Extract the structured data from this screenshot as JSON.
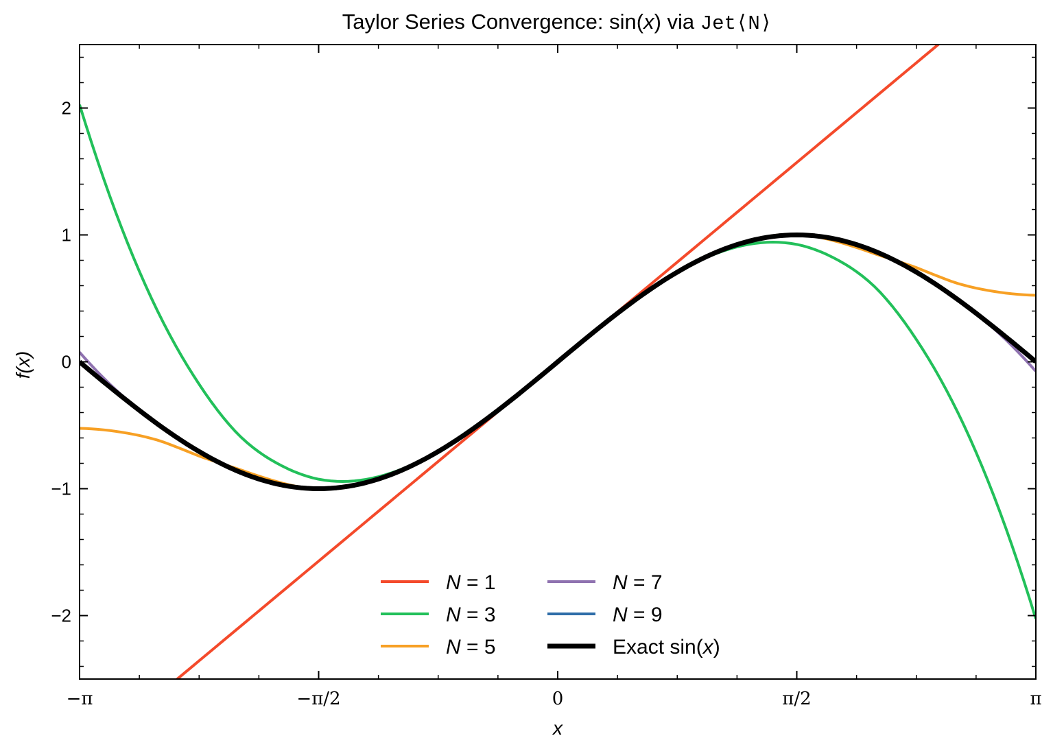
{
  "chart_data": {
    "type": "line",
    "title": {
      "prefix": "Taylor Series Convergence: sin(",
      "var": "x",
      "middle": ") via ",
      "code": "Jet⟨N⟩"
    },
    "xlabel": "x",
    "ylabel": "f(x)",
    "xlim": [
      -3.14159265,
      3.14159265
    ],
    "ylim": [
      -2.5,
      2.5
    ],
    "xticks": [
      {
        "value": -3.14159265,
        "label": "−π"
      },
      {
        "value": -1.57079633,
        "label": "−π/2"
      },
      {
        "value": 0,
        "label": "0"
      },
      {
        "value": 1.57079633,
        "label": "π/2"
      },
      {
        "value": 3.14159265,
        "label": "π"
      }
    ],
    "yticks": [
      {
        "value": 2,
        "label": "2"
      },
      {
        "value": 1,
        "label": "1"
      },
      {
        "value": 0,
        "label": "0"
      },
      {
        "value": -1,
        "label": "−1"
      },
      {
        "value": -2,
        "label": "−2"
      }
    ],
    "grid": false,
    "legend_position": "lower-center",
    "legend_columns": 2,
    "series": [
      {
        "name": "N = 1",
        "color": "#f44a2b",
        "x": [
          -3.14159,
          -2.61799,
          -2.0944,
          -1.5708,
          -1.0472,
          -0.5236,
          0,
          0.5236,
          1.0472,
          1.5708,
          2.0944,
          2.61799,
          3.14159
        ],
        "y": [
          -3.1416,
          -2.618,
          -2.0944,
          -1.5708,
          -1.0472,
          -0.5236,
          0,
          0.5236,
          1.0472,
          1.5708,
          2.0944,
          2.618,
          3.1416
        ]
      },
      {
        "name": "N = 3",
        "color": "#22c05a",
        "x": [
          -3.14159,
          -2.87979,
          -2.61799,
          -2.35619,
          -2.0944,
          -1.8326,
          -1.5708,
          -1.309,
          -1.0472,
          -0.7854,
          -0.5236,
          -0.2618,
          0,
          0.2618,
          0.5236,
          0.7854,
          1.0472,
          1.309,
          1.5708,
          1.8326,
          2.0944,
          2.35619,
          2.61799,
          2.87979,
          3.14159
        ],
        "y": [
          2.0261,
          1.1006,
          0.3727,
          -0.1762,
          -0.5784,
          -0.8067,
          -0.9251,
          -0.9352,
          -0.856,
          -0.7047,
          -0.4997,
          -0.2588,
          0,
          0.2588,
          0.4997,
          0.7047,
          0.856,
          0.9352,
          0.9251,
          0.8067,
          0.5784,
          0.1762,
          -0.3727,
          -1.1006,
          -2.0261
        ]
      },
      {
        "name": "N = 5",
        "color": "#f7a024",
        "x": [
          -3.14159,
          -2.87979,
          -2.61799,
          -2.35619,
          -2.0944,
          -1.8326,
          -1.5708,
          -1.309,
          -1.0472,
          -0.7854,
          -0.5236,
          -0.2618,
          0,
          0.2618,
          0.5236,
          0.7854,
          1.0472,
          1.309,
          1.5708,
          1.8326,
          2.0944,
          2.35619,
          2.61799,
          2.87979,
          3.14159
        ],
        "y": [
          -0.524,
          -0.5523,
          -0.6211,
          -0.7427,
          -0.8469,
          -0.9486,
          -1.0045,
          -0.9719,
          -0.8663,
          -0.7071,
          -0.5,
          -0.2588,
          0,
          0.2588,
          0.5,
          0.7071,
          0.8663,
          0.9719,
          1.0045,
          0.9486,
          0.8469,
          0.7427,
          0.6211,
          0.5523,
          0.524
        ]
      },
      {
        "name": "N = 7",
        "color": "#8f72b0",
        "x": [
          -3.14159,
          -2.87979,
          -2.61799,
          -2.35619,
          -2.0944,
          -1.8326,
          -1.5708,
          -1.309,
          -1.0472,
          -0.7854,
          -0.5236,
          -0.2618,
          0,
          0.2618,
          0.5236,
          0.7854,
          1.0472,
          1.309,
          1.5708,
          1.8326,
          2.0944,
          2.35619,
          2.61799,
          2.87979,
          3.14159
        ],
        "y": [
          0.0752,
          -0.2466,
          -0.4944,
          -0.7041,
          -0.8653,
          -0.9655,
          -0.9998,
          -0.9659,
          -0.866,
          -0.7071,
          -0.5,
          -0.2588,
          0,
          0.2588,
          0.5,
          0.7071,
          0.866,
          0.9659,
          0.9998,
          0.9655,
          0.8653,
          0.7041,
          0.4944,
          0.2466,
          -0.0752
        ]
      },
      {
        "name": "N = 9",
        "color": "#2e6da8",
        "x": [
          -3.14159,
          -2.87979,
          -2.61799,
          -2.35619,
          -2.0944,
          -1.8326,
          -1.5708,
          -1.309,
          -1.0472,
          -0.7854,
          -0.5236,
          -0.2618,
          0,
          0.2618,
          0.5236,
          0.7854,
          1.0472,
          1.309,
          1.5708,
          1.8326,
          2.0944,
          2.35619,
          2.61799,
          2.87979,
          3.14159
        ],
        "y": [
          -0.0069,
          -0.2598,
          -0.5004,
          -0.7072,
          -0.8661,
          -0.9659,
          -1.0,
          -0.9659,
          -0.866,
          -0.7071,
          -0.5,
          -0.2588,
          0,
          0.2588,
          0.5,
          0.7071,
          0.866,
          0.9659,
          1.0,
          0.9659,
          0.8661,
          0.7072,
          0.5004,
          0.2598,
          0.0069
        ]
      },
      {
        "name": "Exact sin(x)",
        "color": "#000000",
        "emphasis": true,
        "x": [
          -3.14159,
          -2.87979,
          -2.61799,
          -2.35619,
          -2.0944,
          -1.8326,
          -1.5708,
          -1.309,
          -1.0472,
          -0.7854,
          -0.5236,
          -0.2618,
          0,
          0.2618,
          0.5236,
          0.7854,
          1.0472,
          1.309,
          1.5708,
          1.8326,
          2.0944,
          2.35619,
          2.61799,
          2.87979,
          3.14159
        ],
        "y": [
          0,
          -0.2588,
          -0.5,
          -0.7071,
          -0.866,
          -0.9659,
          -1.0,
          -0.9659,
          -0.866,
          -0.7071,
          -0.5,
          -0.2588,
          0,
          0.2588,
          0.5,
          0.7071,
          0.866,
          0.9659,
          1.0,
          0.9659,
          0.866,
          0.7071,
          0.5,
          0.2588,
          0
        ]
      }
    ],
    "legend": [
      {
        "prefix": "N",
        "suffix": " = 1",
        "color": "#f44a2b"
      },
      {
        "prefix": "N",
        "suffix": " = 3",
        "color": "#22c05a"
      },
      {
        "prefix": "N",
        "suffix": " = 5",
        "color": "#f7a024"
      },
      {
        "prefix": "N",
        "suffix": " = 7",
        "color": "#8f72b0"
      },
      {
        "prefix": "N",
        "suffix": " = 9",
        "color": "#2e6da8"
      },
      {
        "prefix": "",
        "suffix": "Exact sin(",
        "tail_var": "x",
        "tail": ")",
        "color": "#000000"
      }
    ]
  }
}
